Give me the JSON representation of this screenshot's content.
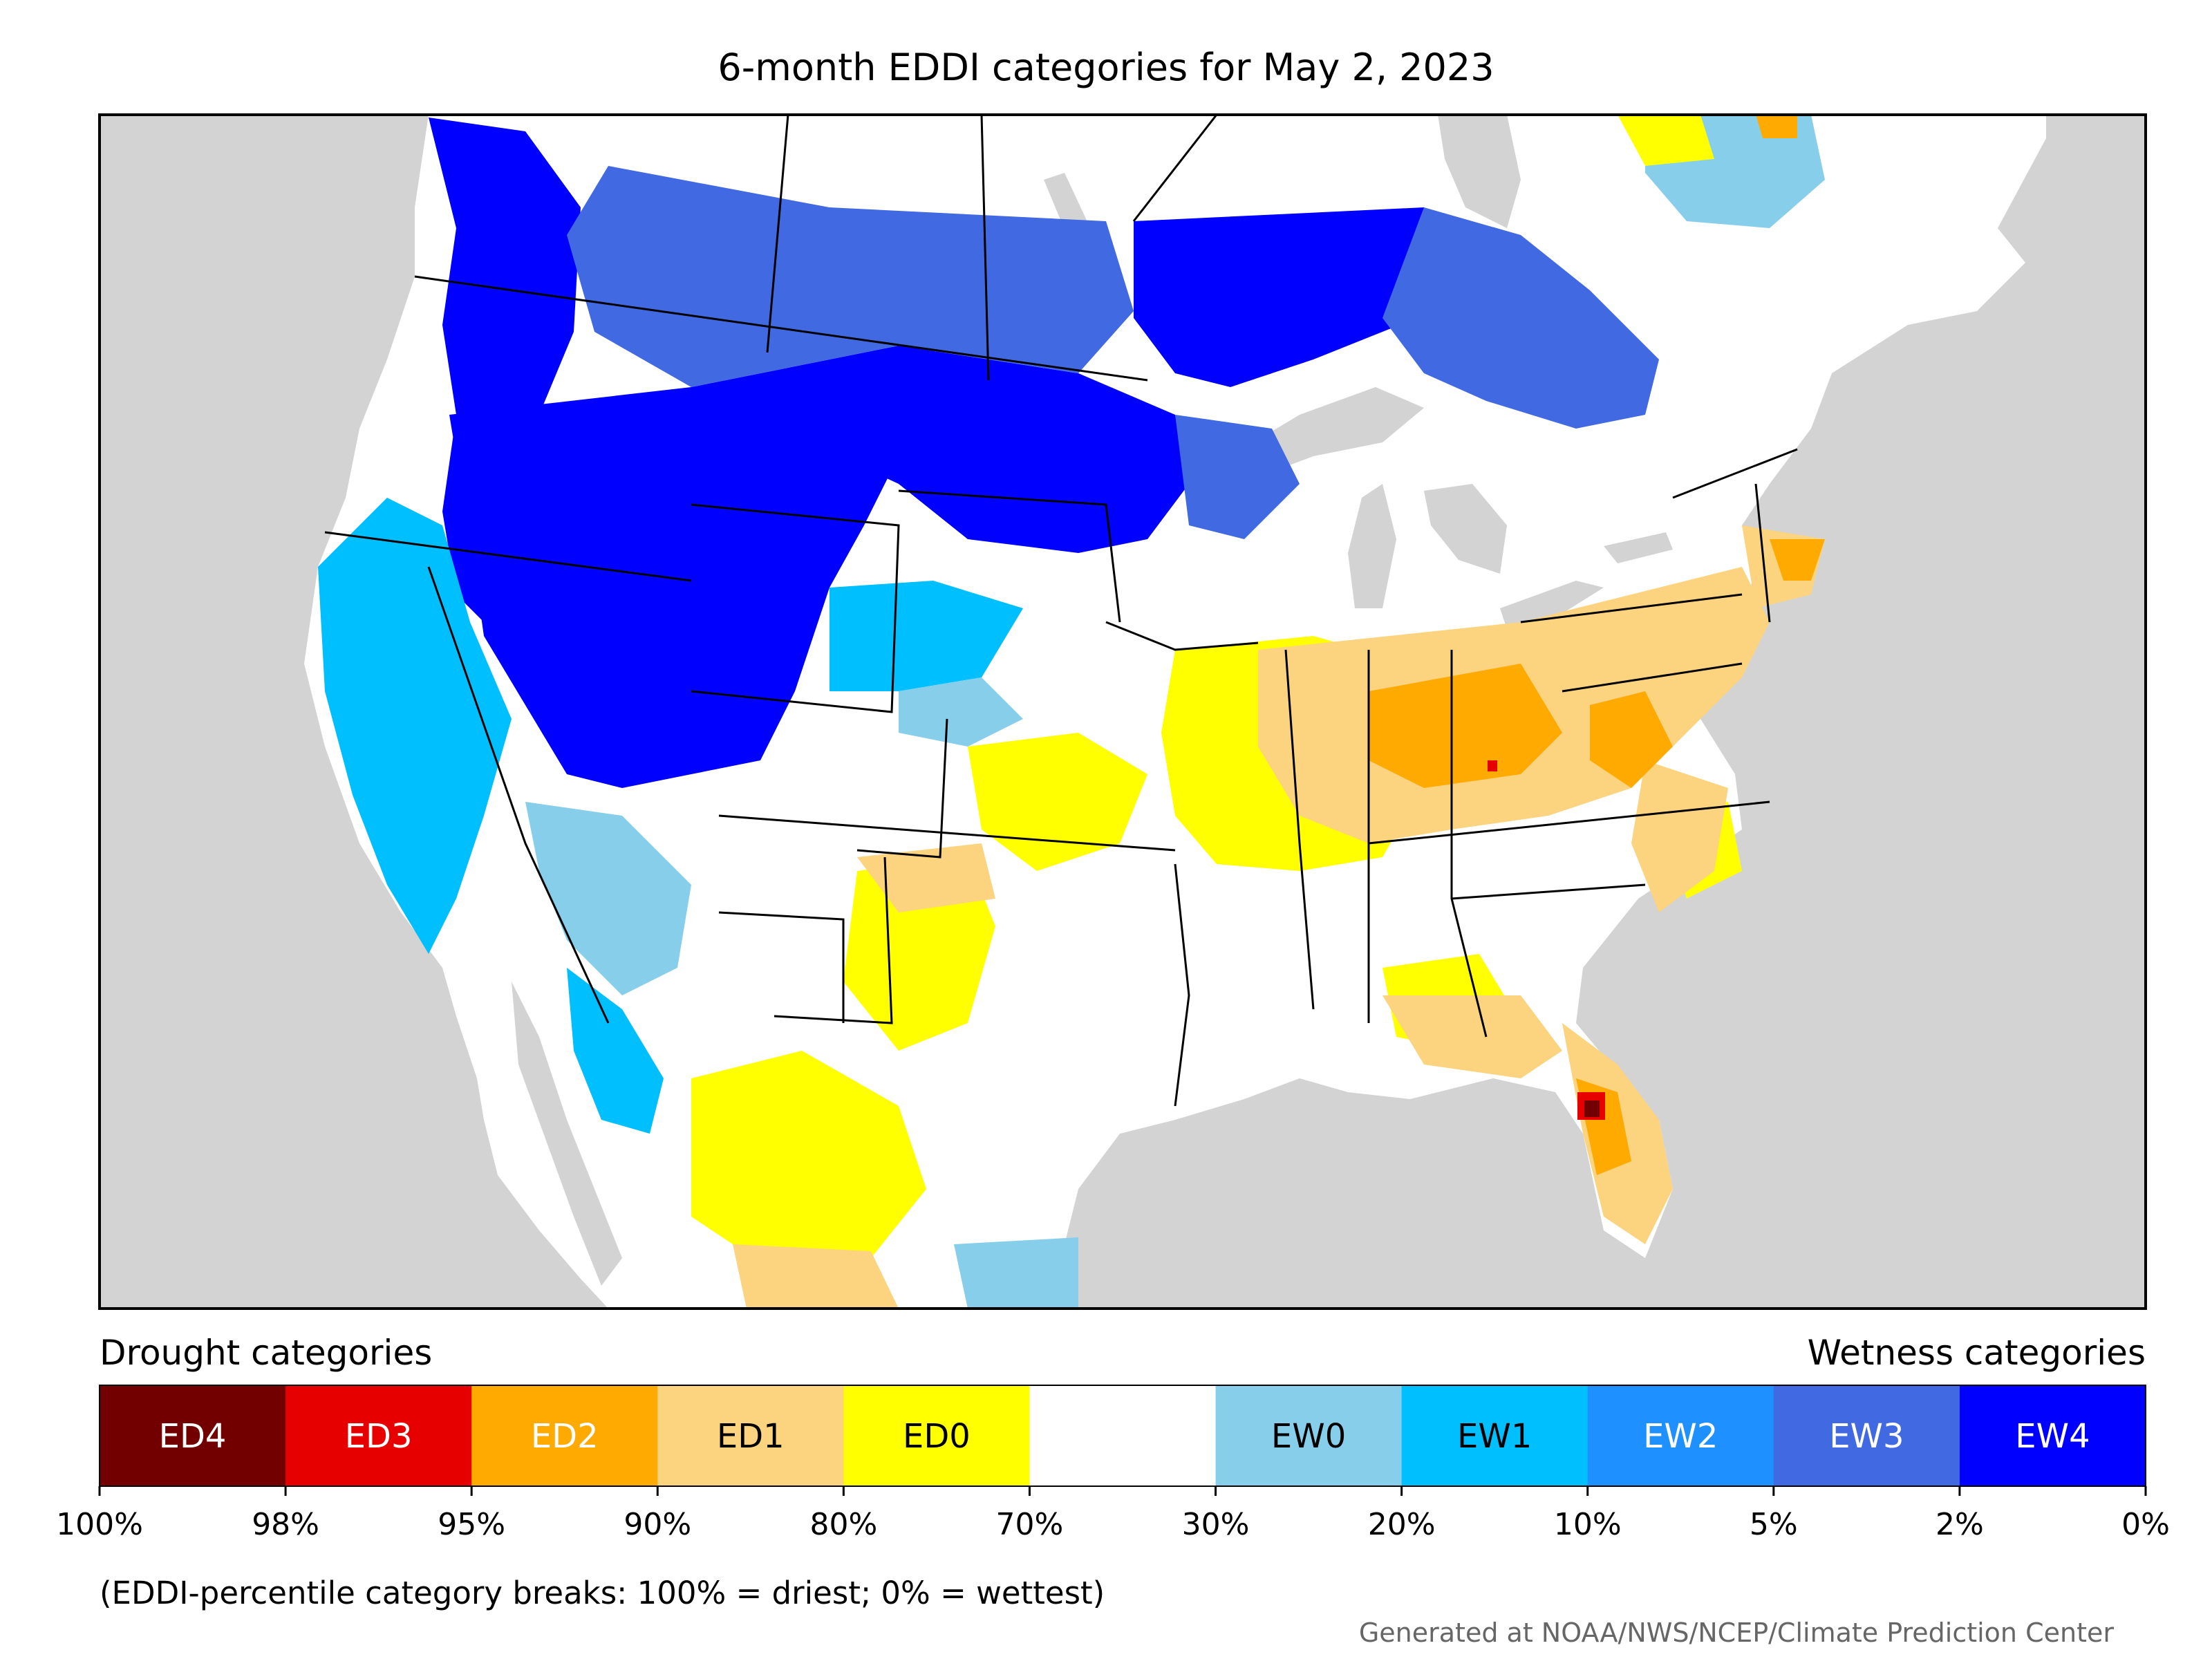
{
  "title": "6-month EDDI categories for May 2, 2023",
  "legend": {
    "drought_heading": "Drought categories",
    "wetness_heading": "Wetness categories",
    "categories": [
      {
        "label": "ED4",
        "color": "#730000",
        "text_color": "#ffffff"
      },
      {
        "label": "ED3",
        "color": "#e60000",
        "text_color": "#ffffff"
      },
      {
        "label": "ED2",
        "color": "#ffaa00",
        "text_color": "#ffffff"
      },
      {
        "label": "ED1",
        "color": "#fcd37f",
        "text_color": "#000000"
      },
      {
        "label": "ED0",
        "color": "#ffff00",
        "text_color": "#000000"
      },
      {
        "label": "",
        "color": "#ffffff",
        "text_color": "#000000"
      },
      {
        "label": "EW0",
        "color": "#87ceeb",
        "text_color": "#000000"
      },
      {
        "label": "EW1",
        "color": "#00bfff",
        "text_color": "#000000"
      },
      {
        "label": "EW2",
        "color": "#1e90ff",
        "text_color": "#ffffff"
      },
      {
        "label": "EW3",
        "color": "#4169e1",
        "text_color": "#ffffff"
      },
      {
        "label": "EW4",
        "color": "#0000ff",
        "text_color": "#ffffff"
      }
    ],
    "ticks": [
      "100%",
      "98%",
      "95%",
      "90%",
      "80%",
      "70%",
      "30%",
      "20%",
      "10%",
      "5%",
      "2%",
      "0%"
    ],
    "footnote": "(EDDI-percentile category breaks: 100% = driest; 0% = wettest)"
  },
  "credit": "Generated at NOAA/NWS/NCEP/Climate Prediction Center",
  "colors": {
    "ocean": "#d3d3d3",
    "land": "#ffffff",
    "border": "#000000"
  }
}
